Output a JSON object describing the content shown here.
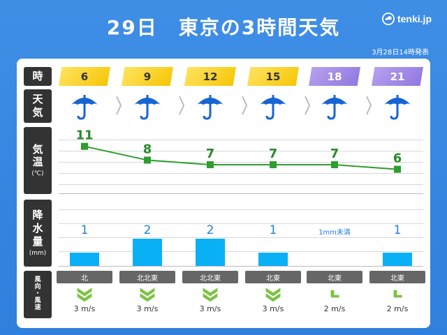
{
  "header": {
    "title": "29日　東京の3時間天気",
    "logo": "tenki.jp",
    "issued": "3月28日14時発表"
  },
  "labels": {
    "time": "時",
    "weather": [
      "天",
      "気"
    ],
    "temp": [
      "気",
      "温"
    ],
    "temp_unit": "(℃)",
    "precip": [
      "降",
      "水",
      "量"
    ],
    "precip_unit": "(mm)",
    "wind": [
      "風",
      "向",
      "・",
      "風",
      "速"
    ]
  },
  "hours": [
    "6",
    "9",
    "12",
    "15",
    "18",
    "21"
  ],
  "weather_icons": [
    "umbrella-icon",
    "umbrella-icon",
    "umbrella-icon",
    "umbrella-icon",
    "umbrella-icon",
    "umbrella-icon"
  ],
  "temperatures": [
    "11",
    "8",
    "7",
    "7",
    "7",
    "6"
  ],
  "precipitation": [
    "1",
    "2",
    "2",
    "1",
    "1mm未満",
    "1"
  ],
  "wind": {
    "directions": [
      "北",
      "北北東",
      "北北東",
      "北東",
      "北東",
      "北東"
    ],
    "speeds": [
      "3 m/s",
      "3 m/s",
      "3 m/s",
      "3 m/s",
      "2 m/s",
      "2 m/s"
    ]
  },
  "chart_data": {
    "type": "line",
    "x": [
      "6",
      "9",
      "12",
      "15",
      "18",
      "21"
    ],
    "series": [
      {
        "values": [
          11,
          8,
          7,
          7,
          7,
          6
        ]
      }
    ],
    "bars": [
      1,
      2,
      2,
      1,
      0.5,
      1
    ]
  },
  "colors": {
    "background": "#3f8ee6",
    "day_header": "#f5c400",
    "night_header": "#8f76de",
    "temp_line": "#2e9e2e",
    "precip_bar": "#0ab0f5",
    "umbrella": "#1765d4"
  }
}
